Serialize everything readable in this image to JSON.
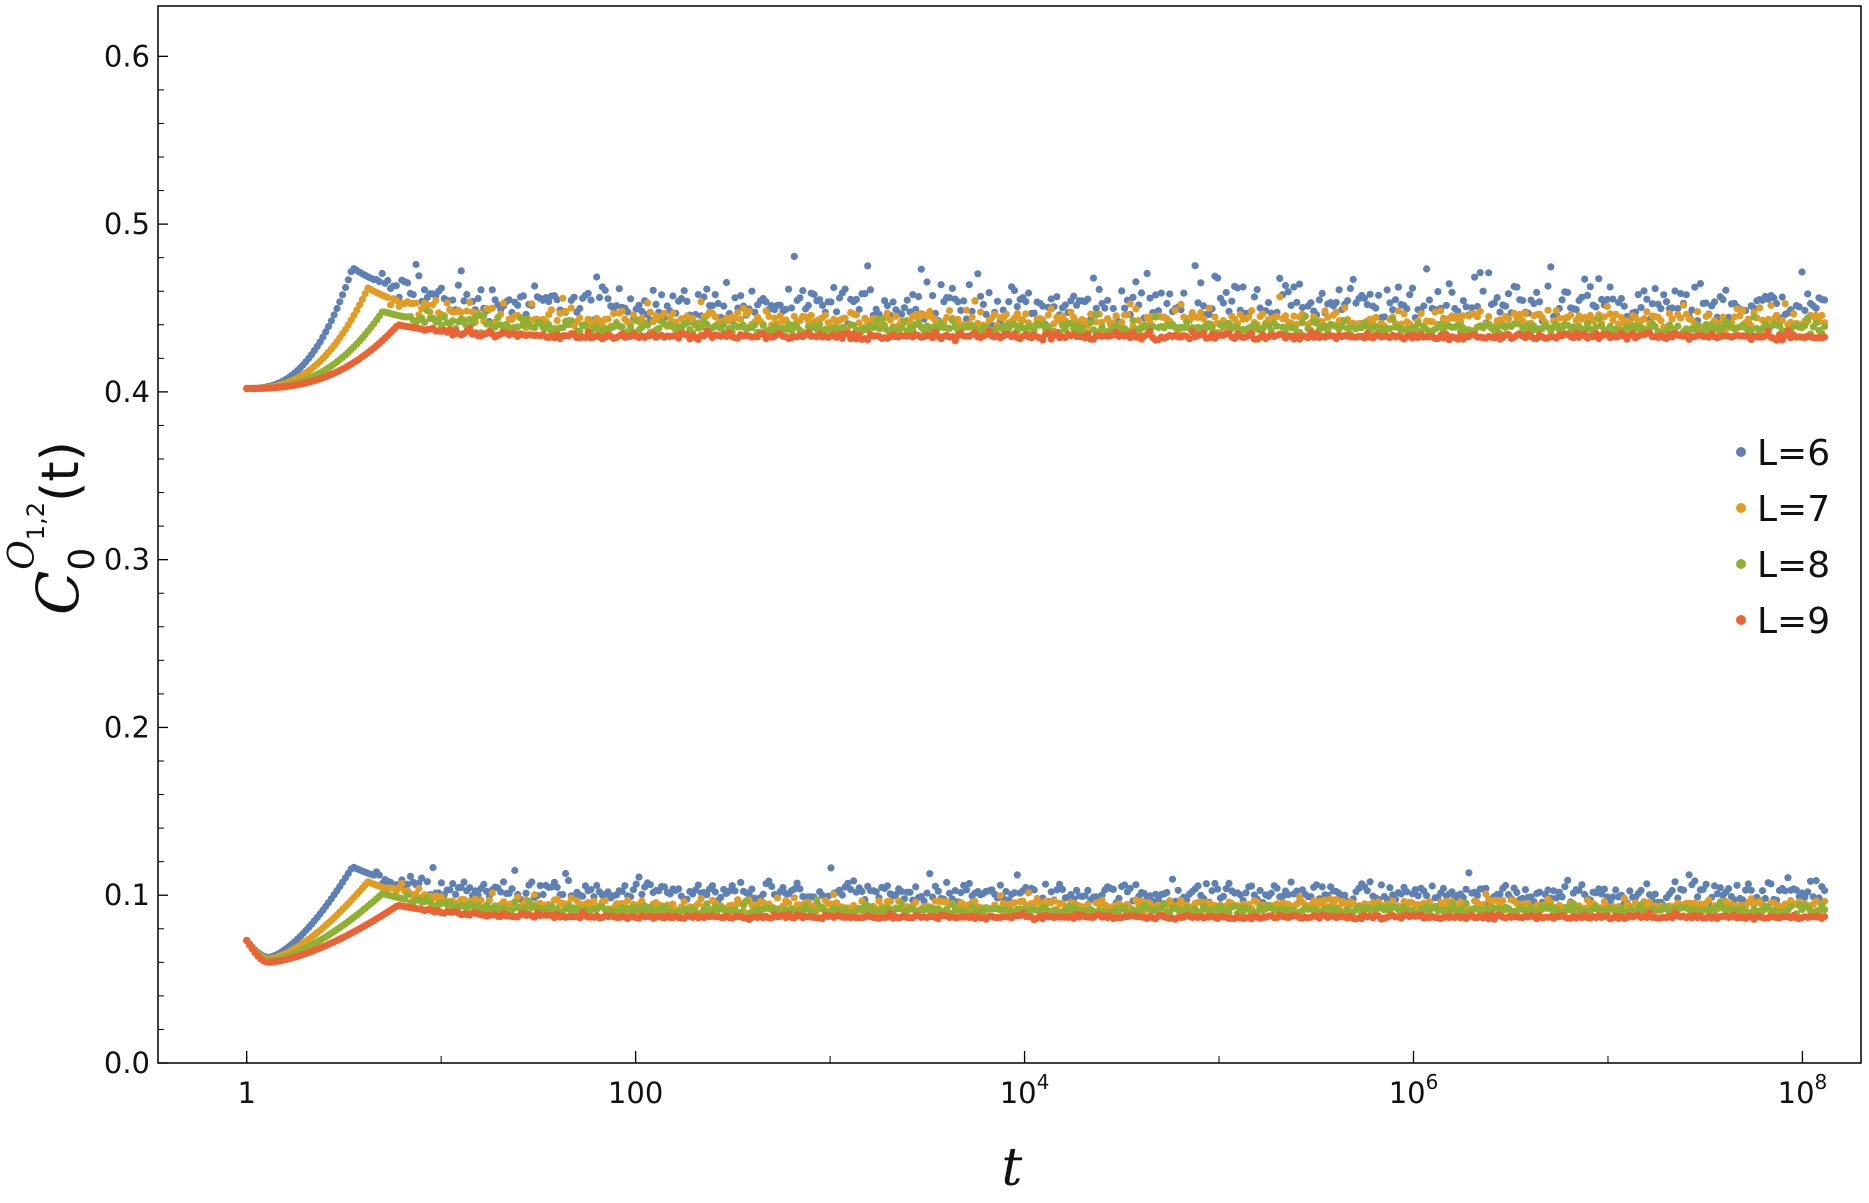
{
  "chart_data": {
    "type": "scatter",
    "xscale": "log",
    "xlim": [
      0.35,
      200000000
    ],
    "ylim": [
      0.0,
      0.63
    ],
    "xlabel": "t",
    "ylabel": {
      "main": "C",
      "sub": "0",
      "sup": "O",
      "supsub": "1,2",
      "arg": "(t)"
    },
    "xticks": [
      {
        "value": 1,
        "base": "1",
        "exp": ""
      },
      {
        "value": 100,
        "base": "100",
        "exp": ""
      },
      {
        "value": 10000,
        "base": "10",
        "exp": "4"
      },
      {
        "value": 1000000,
        "base": "10",
        "exp": "6"
      },
      {
        "value": 100000000,
        "base": "10",
        "exp": "8"
      }
    ],
    "yticks": [
      "0.0",
      "0.1",
      "0.2",
      "0.3",
      "0.4",
      "0.5",
      "0.6"
    ],
    "legend_position": "right",
    "series": [
      {
        "name": "L=6",
        "color": "#5e81b5",
        "upper": {
          "start": 0.402,
          "peak": 0.474,
          "peak_t": 3.5,
          "plateau": 0.452,
          "spread": 0.009
        },
        "lower": {
          "start": 0.073,
          "dip": 0.063,
          "peak": 0.117,
          "peak_t": 3.5,
          "plateau": 0.101,
          "spread": 0.005
        }
      },
      {
        "name": "L=7",
        "color": "#e19c24",
        "upper": {
          "start": 0.402,
          "peak": 0.462,
          "peak_t": 4.2,
          "plateau": 0.443,
          "spread": 0.005
        },
        "lower": {
          "start": 0.073,
          "dip": 0.062,
          "peak": 0.108,
          "peak_t": 4.2,
          "plateau": 0.094,
          "spread": 0.003
        }
      },
      {
        "name": "L=8",
        "color": "#8fb032",
        "upper": {
          "start": 0.402,
          "peak": 0.448,
          "peak_t": 5.0,
          "plateau": 0.438,
          "spread": 0.003
        },
        "lower": {
          "start": 0.073,
          "dip": 0.061,
          "peak": 0.101,
          "peak_t": 5.0,
          "plateau": 0.091,
          "spread": 0.002
        }
      },
      {
        "name": "L=9",
        "color": "#eb6235",
        "upper": {
          "start": 0.402,
          "peak": 0.44,
          "peak_t": 6.0,
          "plateau": 0.433,
          "spread": 0.0015
        },
        "lower": {
          "start": 0.073,
          "dip": 0.06,
          "peak": 0.094,
          "peak_t": 6.0,
          "plateau": 0.087,
          "spread": 0.001
        }
      }
    ]
  }
}
